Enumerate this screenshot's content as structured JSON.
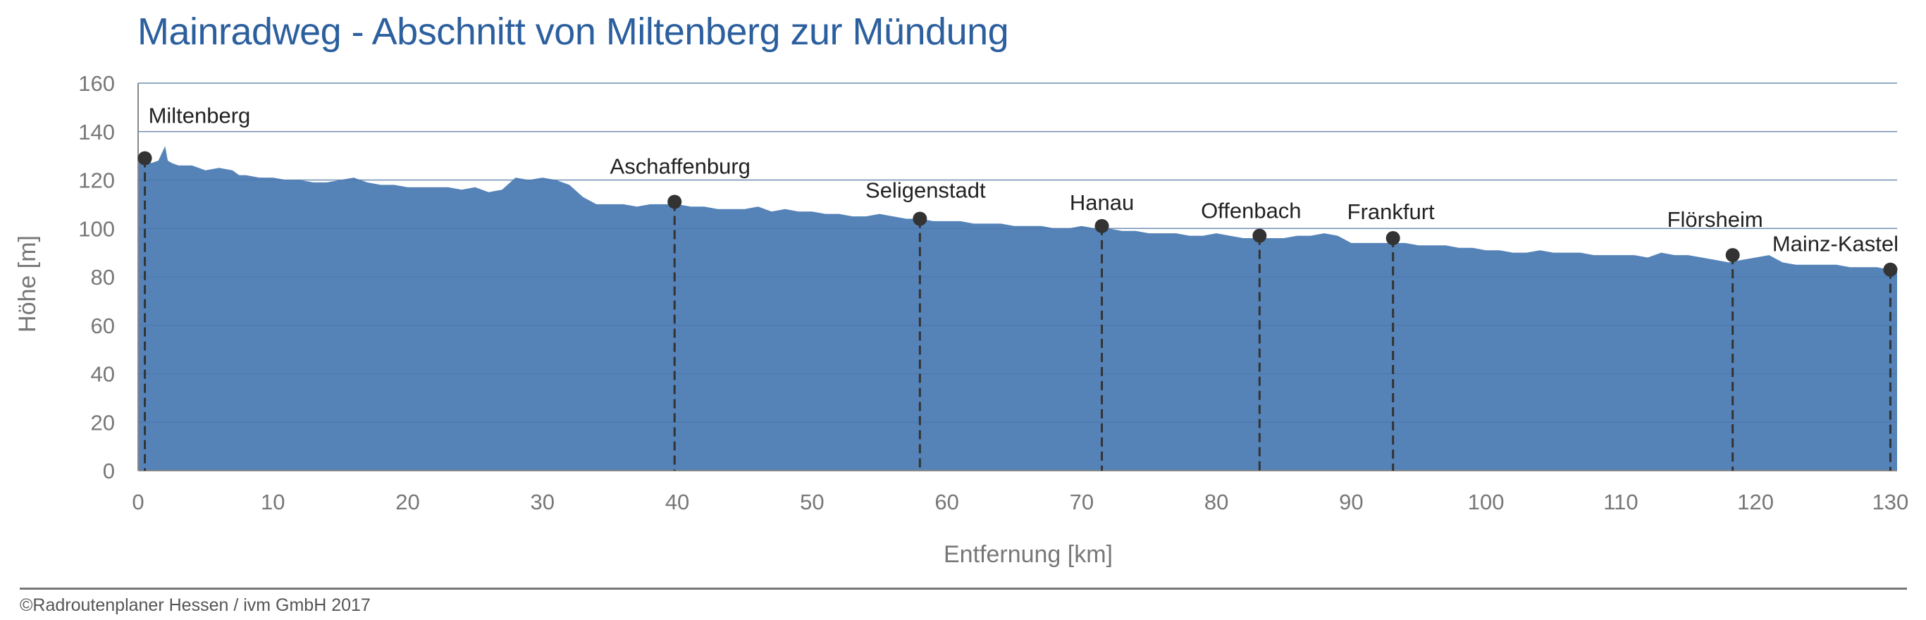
{
  "chart_data": {
    "type": "area",
    "title": "Mainradweg - Abschnitt von Miltenberg zur Mündung",
    "xlabel": "Entfernung [km]",
    "ylabel": "Höhe [m]",
    "xlim": [
      0,
      130.5
    ],
    "ylim": [
      0,
      160
    ],
    "x_ticks": [
      0,
      10,
      20,
      30,
      40,
      50,
      60,
      70,
      80,
      90,
      100,
      110,
      120,
      130
    ],
    "y_ticks": [
      0,
      20,
      40,
      60,
      80,
      100,
      120,
      140,
      160
    ],
    "grid": true,
    "legend": "none",
    "series": [
      {
        "color": "#5583b8",
        "x": [
          0,
          0.5,
          1,
          1.5,
          2,
          2.2,
          2.5,
          3,
          4,
          5,
          6,
          7,
          7.5,
          8,
          9,
          10,
          11,
          12,
          13,
          14,
          15,
          16,
          17,
          18,
          19,
          20,
          21,
          22,
          23,
          24,
          25,
          26,
          27,
          28,
          29,
          30,
          31,
          32,
          33,
          34,
          35,
          36,
          37,
          38,
          39,
          40,
          41,
          42,
          43,
          44,
          45,
          46,
          47,
          48,
          49,
          50,
          51,
          52,
          53,
          54,
          55,
          56,
          57,
          58,
          59,
          60,
          61,
          62,
          63,
          64,
          65,
          66,
          67,
          68,
          69,
          70,
          71,
          72,
          73,
          74,
          75,
          76,
          77,
          78,
          79,
          80,
          81,
          82,
          83,
          84,
          85,
          86,
          87,
          88,
          89,
          90,
          91,
          92,
          93,
          94,
          95,
          96,
          97,
          98,
          99,
          100,
          101,
          102,
          103,
          104,
          105,
          106,
          107,
          108,
          109,
          110,
          111,
          112,
          113,
          114,
          115,
          116,
          117,
          118,
          119,
          120,
          121,
          122,
          123,
          124,
          125,
          126,
          127,
          128,
          129,
          130,
          130.5
        ],
        "y": [
          129,
          128,
          127,
          128,
          134,
          128,
          127,
          126,
          126,
          124,
          125,
          124,
          122,
          122,
          121,
          121,
          120,
          120,
          119,
          119,
          120,
          121,
          119,
          118,
          118,
          117,
          117,
          117,
          117,
          116,
          117,
          115,
          116,
          121,
          120,
          121,
          120,
          118,
          113,
          110,
          110,
          110,
          109,
          110,
          110,
          110,
          109,
          109,
          108,
          108,
          108,
          109,
          107,
          108,
          107,
          107,
          106,
          106,
          105,
          105,
          106,
          105,
          104,
          104,
          103,
          103,
          103,
          102,
          102,
          102,
          101,
          101,
          101,
          100,
          100,
          101,
          100,
          100,
          99,
          99,
          98,
          98,
          98,
          97,
          97,
          98,
          97,
          96,
          96,
          96,
          96,
          97,
          97,
          98,
          97,
          94,
          94,
          94,
          94,
          94,
          93,
          93,
          93,
          92,
          92,
          91,
          91,
          90,
          90,
          91,
          90,
          90,
          90,
          89,
          89,
          89,
          89,
          88,
          90,
          89,
          89,
          88,
          87,
          86,
          87,
          88,
          89,
          86,
          85,
          85,
          85,
          85,
          84,
          84,
          84,
          83,
          83
        ]
      }
    ],
    "annotations": [
      {
        "label": "Miltenberg",
        "x": 0.5,
        "y": 129
      },
      {
        "label": "Aschaffenburg",
        "x": 39.8,
        "y": 111
      },
      {
        "label": "Seligenstadt",
        "x": 58.0,
        "y": 104
      },
      {
        "label": "Hanau",
        "x": 71.5,
        "y": 101
      },
      {
        "label": "Offenbach",
        "x": 83.2,
        "y": 97
      },
      {
        "label": "Frankfurt",
        "x": 93.1,
        "y": 96
      },
      {
        "label": "Flörsheim",
        "x": 118.3,
        "y": 89
      },
      {
        "label": "Mainz-Kastel",
        "x": 130.0,
        "y": 83
      }
    ]
  },
  "footer": {
    "copyright": "©Radroutenplaner Hessen / ivm GmbH 2017"
  }
}
